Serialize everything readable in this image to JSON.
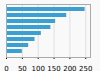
{
  "chart_data": {
    "type": "bar",
    "orientation": "horizontal",
    "categories": [
      null,
      null,
      null,
      null,
      null,
      null,
      null,
      null
    ],
    "values": [
      248,
      190,
      155,
      140,
      110,
      90,
      70,
      50
    ],
    "color": "#3aa0d2",
    "xlim": [
      0,
      265
    ],
    "xticks": [
      0,
      50,
      100,
      150,
      200,
      250
    ],
    "grid": true,
    "tick_labels": "x"
  }
}
